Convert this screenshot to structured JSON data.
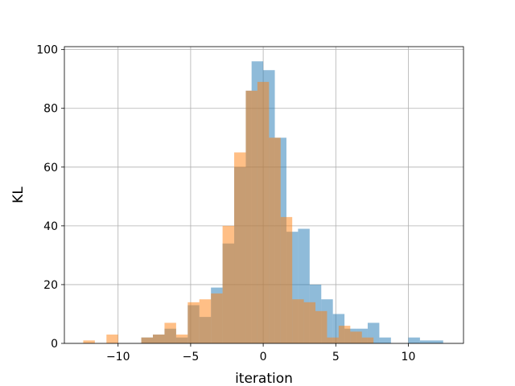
{
  "chart_data": {
    "type": "bar",
    "subtype": "overlaid-histogram",
    "title": "",
    "xlabel": "iteration",
    "ylabel": "KL",
    "xlim": [
      -13.7,
      13.8
    ],
    "ylim": [
      0,
      101
    ],
    "xticks": [
      -10,
      -5,
      0,
      5,
      10
    ],
    "yticks": [
      0,
      20,
      40,
      60,
      80,
      100
    ],
    "xtick_labels": [
      "−10",
      "−5",
      "0",
      "5",
      "10"
    ],
    "ytick_labels": [
      "0",
      "20",
      "40",
      "60",
      "80",
      "100"
    ],
    "grid": true,
    "legend": false,
    "series": [
      {
        "color": "#1f77b4",
        "opacity": 0.5,
        "bins": [
          {
            "x0": -8.4,
            "x1": -7.6,
            "count": 2
          },
          {
            "x0": -7.6,
            "x1": -6.8,
            "count": 3
          },
          {
            "x0": -6.8,
            "x1": -6.0,
            "count": 5
          },
          {
            "x0": -6.0,
            "x1": -5.2,
            "count": 2
          },
          {
            "x0": -5.2,
            "x1": -4.4,
            "count": 13
          },
          {
            "x0": -4.4,
            "x1": -3.6,
            "count": 9
          },
          {
            "x0": -3.6,
            "x1": -2.8,
            "count": 19
          },
          {
            "x0": -2.8,
            "x1": -2.0,
            "count": 34
          },
          {
            "x0": -2.0,
            "x1": -1.2,
            "count": 60
          },
          {
            "x0": -1.2,
            "x1": -0.8,
            "count": 86
          },
          {
            "x0": -0.8,
            "x1": 0.0,
            "count": 96
          },
          {
            "x0": 0.0,
            "x1": 0.8,
            "count": 93
          },
          {
            "x0": 0.8,
            "x1": 1.6,
            "count": 70
          },
          {
            "x0": 1.6,
            "x1": 2.4,
            "count": 38
          },
          {
            "x0": 2.4,
            "x1": 3.2,
            "count": 39
          },
          {
            "x0": 3.2,
            "x1": 4.0,
            "count": 20
          },
          {
            "x0": 4.0,
            "x1": 4.8,
            "count": 15
          },
          {
            "x0": 4.8,
            "x1": 5.6,
            "count": 10
          },
          {
            "x0": 5.6,
            "x1": 6.4,
            "count": 5
          },
          {
            "x0": 6.4,
            "x1": 7.2,
            "count": 5
          },
          {
            "x0": 7.2,
            "x1": 8.0,
            "count": 7
          },
          {
            "x0": 8.0,
            "x1": 8.8,
            "count": 2
          },
          {
            "x0": 10.0,
            "x1": 10.8,
            "count": 2
          },
          {
            "x0": 10.8,
            "x1": 12.4,
            "count": 1
          }
        ]
      },
      {
        "color": "#ff7f0e",
        "opacity": 0.5,
        "bins": [
          {
            "x0": -12.4,
            "x1": -11.6,
            "count": 1
          },
          {
            "x0": -10.8,
            "x1": -10.0,
            "count": 3
          },
          {
            "x0": -8.4,
            "x1": -7.6,
            "count": 2
          },
          {
            "x0": -7.6,
            "x1": -6.8,
            "count": 3
          },
          {
            "x0": -6.8,
            "x1": -6.0,
            "count": 7
          },
          {
            "x0": -6.0,
            "x1": -5.2,
            "count": 3
          },
          {
            "x0": -5.2,
            "x1": -4.4,
            "count": 14
          },
          {
            "x0": -4.4,
            "x1": -3.6,
            "count": 15
          },
          {
            "x0": -3.6,
            "x1": -2.8,
            "count": 17
          },
          {
            "x0": -2.8,
            "x1": -2.0,
            "count": 40
          },
          {
            "x0": -2.0,
            "x1": -1.2,
            "count": 65
          },
          {
            "x0": -1.2,
            "x1": -0.4,
            "count": 86
          },
          {
            "x0": -0.4,
            "x1": 0.4,
            "count": 89
          },
          {
            "x0": 0.4,
            "x1": 1.2,
            "count": 70
          },
          {
            "x0": 1.2,
            "x1": 2.0,
            "count": 43
          },
          {
            "x0": 2.0,
            "x1": 2.8,
            "count": 15
          },
          {
            "x0": 2.8,
            "x1": 3.6,
            "count": 14
          },
          {
            "x0": 3.6,
            "x1": 4.4,
            "count": 11
          },
          {
            "x0": 4.4,
            "x1": 5.2,
            "count": 2
          },
          {
            "x0": 5.2,
            "x1": 6.0,
            "count": 6
          },
          {
            "x0": 6.0,
            "x1": 6.8,
            "count": 4
          },
          {
            "x0": 6.8,
            "x1": 7.6,
            "count": 2
          }
        ]
      }
    ]
  }
}
